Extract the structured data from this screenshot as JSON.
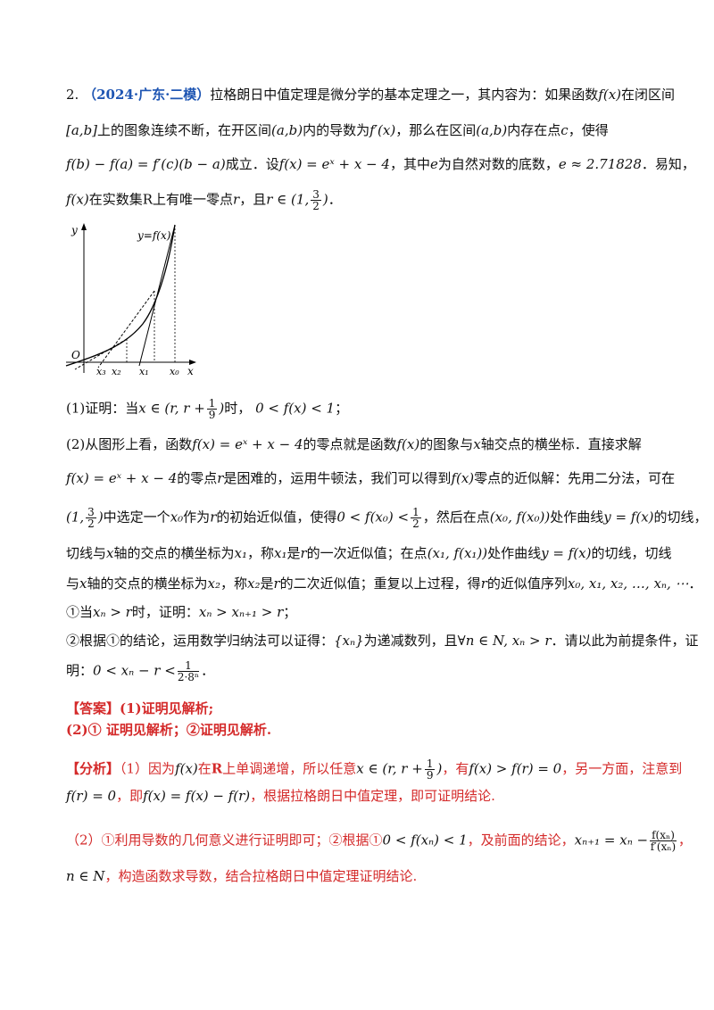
{
  "question": {
    "number": "2.",
    "source": "（2024·广东·二模）",
    "line1": "拉格朗日中值定理是微分学的基本定理之一，其内容为：如果函数",
    "fx": "f(x)",
    "line1b": "在闭区间",
    "line2a": "[a,b]",
    "line2b": "上的图象连续不断，在开区间",
    "ab": "(a,b)",
    "line2c": "内的导数为",
    "fpx": "f′(x)",
    "line2d": "，那么在区间",
    "line2e": "内存在点",
    "c": "c",
    "line2f": "，使得",
    "line3a": "f(b) − f(a) = f′(c)(b − a)",
    "line3b": "成立．设",
    "line3c": "f(x) = eˣ + x − 4",
    "line3d": "，其中",
    "e": "e",
    "line3e": "为自然对数的底数，",
    "e_approx": "e ≈ 2.71828",
    "line3f": "．易知，",
    "line4a": "f(x)",
    "line4b": "在实数集",
    "R": "R",
    "line4c": "上有唯一零点",
    "r": "r",
    "line4d": "，且",
    "line4e": "r ∈ (1,",
    "line4f": ")",
    "line4g": "．"
  },
  "graph": {
    "y_label": "y",
    "x_label": "x",
    "origin": "O",
    "curve_label": "y=f(x)",
    "x3": "x₃",
    "x2": "x₂",
    "x1": "x₁",
    "x0": "x₀"
  },
  "part1": {
    "a": "(1)证明：当",
    "b": "x ∈ (r, r +",
    "c": ")",
    "d": "时，",
    "e": "0 < f(x) < 1",
    "f": "；"
  },
  "part2": {
    "l1a": "(2)从图形上看，函数",
    "l1b": "f(x) = eˣ + x − 4",
    "l1c": "的零点就是函数",
    "l1d": "f(x)",
    "l1e": "的图象与",
    "l1f": "x",
    "l1g": "轴交点的横坐标．直接求解",
    "l2a": "f(x) = eˣ + x − 4",
    "l2b": "的零点",
    "l2c": "r",
    "l2d": "是困难的，运用牛顿法，我们可以得到",
    "l2e": "f(x)",
    "l2f": "零点的近似解：先用二分法，可在",
    "l3a": "(1,",
    "l3b": ")",
    "l3c": "中选定一个",
    "l3d": "x₀",
    "l3e": "作为",
    "l3f": "r",
    "l3g": "的初始近似值，使得",
    "l3h": "0 < f(x₀) <",
    "l3i": "，然后在点",
    "l3j": "(x₀, f(x₀))",
    "l3k": "处作曲线",
    "l3l": "y = f(x)",
    "l3m": "的切线，",
    "l4a": "切线与",
    "l4b": "x",
    "l4c": "轴的交点的横坐标为",
    "l4d": "x₁",
    "l4e": "，称",
    "l4f": "x₁",
    "l4g": "是",
    "l4h": "r",
    "l4i": "的一次近似值；在点",
    "l4j": "(x₁, f(x₁))",
    "l4k": "处作曲线",
    "l4l": "y = f(x)",
    "l4m": "的切线，切线",
    "l5a": "与",
    "l5b": "x",
    "l5c": "轴的交点的横坐标为",
    "l5d": "x₂",
    "l5e": "，称",
    "l5f": "x₂",
    "l5g": "是",
    "l5h": "r",
    "l5i": "的二次近似值；重复以上过程，得",
    "l5j": "r",
    "l5k": "的近似值序列",
    "l5l": "x₀, x₁, x₂, …, xₙ, ⋯",
    "l5m": "．",
    "l6a": "①当",
    "l6b": "xₙ > r",
    "l6c": "时，证明：",
    "l6d": "xₙ > xₙ₊₁ > r",
    "l6e": "；",
    "l7a": "②根据①的结论，运用数学归纳法可以证得：",
    "l7b": "{xₙ}",
    "l7c": "为递减数列，且",
    "l7d": "∀n ∈ N, xₙ > r",
    "l7e": "．请以此为前提条件，证",
    "l8a": "明：",
    "l8b": "0 < xₙ − r <",
    "l8num": "1",
    "l8den": "2·8ⁿ",
    "l8c": "．"
  },
  "answer": {
    "tag": "【答案】",
    "a1": "(1)证明见解析;",
    "a2": "(2)① 证明见解析；②证明见解析."
  },
  "analysis": {
    "tag": "【分析】",
    "p1a": "（1）因为",
    "p1b": "f(x)",
    "p1c": "在",
    "p1d": "R",
    "p1e": "上单调递增，所以任意",
    "p1f": "x ∈ (r, r +",
    "p1g": ")",
    "p1h": "，有",
    "p1i": "f(x) > f(r) = 0",
    "p1j": "，另一方面，注意到",
    "p2a": "f(r) = 0",
    "p2b": "，即",
    "p2c": "f(x) = f(x) − f(r)",
    "p2d": "，根据拉格朗日中值定理，即可证明结论.",
    "p3a": "（2）①利用导数的几何意义进行证明即可；②根据①",
    "p3b": "0 < f(xₙ) < 1",
    "p3c": "，及前面的结论，",
    "p3d": "xₙ₊₁ = xₙ −",
    "p3num": "f(xₙ)",
    "p3den": "f′(xₙ)",
    "p3e": "，",
    "p4a": "n ∈ N",
    "p4b": "，构造函数求导数，结合拉格朗日中值定理证明结论."
  },
  "fractions": {
    "three": "3",
    "two": "2",
    "one": "1",
    "nine": "9"
  }
}
